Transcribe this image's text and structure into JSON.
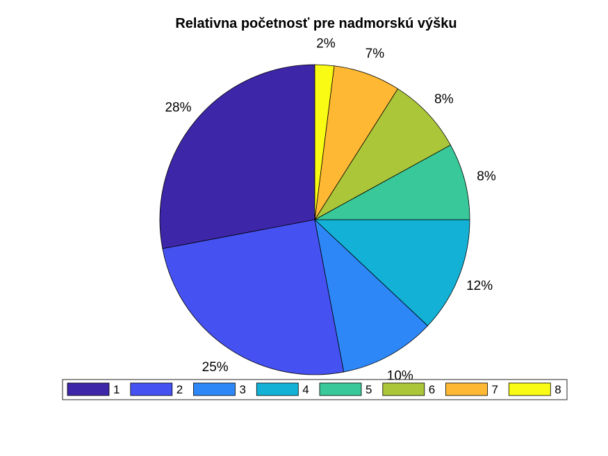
{
  "chart_data": {
    "type": "pie",
    "title": "Relativna početnosť pre nadmorskú výšku",
    "categories": [
      "1",
      "2",
      "3",
      "4",
      "5",
      "6",
      "7",
      "8"
    ],
    "values": [
      28,
      25,
      10,
      12,
      8,
      8,
      7,
      2
    ],
    "labels": [
      "28%",
      "25%",
      "10%",
      "12%",
      "8%",
      "8%",
      "7%",
      "2%"
    ],
    "colors": [
      "#3e26a8",
      "#4651f1",
      "#2e87f7",
      "#13b1d6",
      "#39c899",
      "#abc739",
      "#feb834",
      "#f9fb15"
    ],
    "direction": "counterclockwise",
    "start_angle_deg": 90,
    "legend": {
      "placement": "bottom",
      "orientation": "horizontal"
    }
  }
}
